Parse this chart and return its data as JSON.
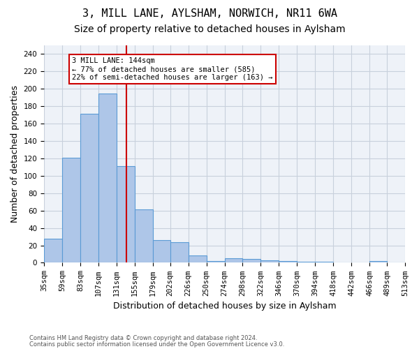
{
  "title1": "3, MILL LANE, AYLSHAM, NORWICH, NR11 6WA",
  "title2": "Size of property relative to detached houses in Aylsham",
  "xlabel": "Distribution of detached houses by size in Aylsham",
  "ylabel": "Number of detached properties",
  "footer1": "Contains HM Land Registry data © Crown copyright and database right 2024.",
  "footer2": "Contains public sector information licensed under the Open Government Licence v3.0.",
  "property_label": "3 MILL LANE: 144sqm",
  "annotation_line1": "← 77% of detached houses are smaller (585)",
  "annotation_line2": "22% of semi-detached houses are larger (163) →",
  "property_size": 144,
  "bar_color": "#aec6e8",
  "bar_edge_color": "#5b9bd5",
  "vline_color": "#cc0000",
  "annotation_box_edge": "#cc0000",
  "bins": [
    35,
    59,
    83,
    107,
    131,
    155,
    179,
    202,
    226,
    250,
    274,
    298,
    322,
    346,
    370,
    394,
    418,
    442,
    466,
    489,
    513
  ],
  "bin_labels": [
    "35sqm",
    "59sqm",
    "83sqm",
    "107sqm",
    "131sqm",
    "155sqm",
    "179sqm",
    "202sqm",
    "226sqm",
    "250sqm",
    "274sqm",
    "298sqm",
    "322sqm",
    "346sqm",
    "370sqm",
    "394sqm",
    "418sqm",
    "442sqm",
    "466sqm",
    "489sqm",
    "513sqm"
  ],
  "values": [
    28,
    121,
    171,
    195,
    111,
    61,
    26,
    24,
    8,
    2,
    5,
    4,
    3,
    2,
    1,
    1,
    0,
    0,
    2,
    0
  ],
  "ylim": [
    0,
    250
  ],
  "yticks": [
    0,
    20,
    40,
    60,
    80,
    100,
    120,
    140,
    160,
    180,
    200,
    220,
    240
  ],
  "grid_color": "#c8d0dc",
  "background_color": "#eef2f8",
  "title_fontsize": 11,
  "subtitle_fontsize": 10,
  "tick_fontsize": 7.5,
  "ylabel_fontsize": 9,
  "xlabel_fontsize": 9
}
